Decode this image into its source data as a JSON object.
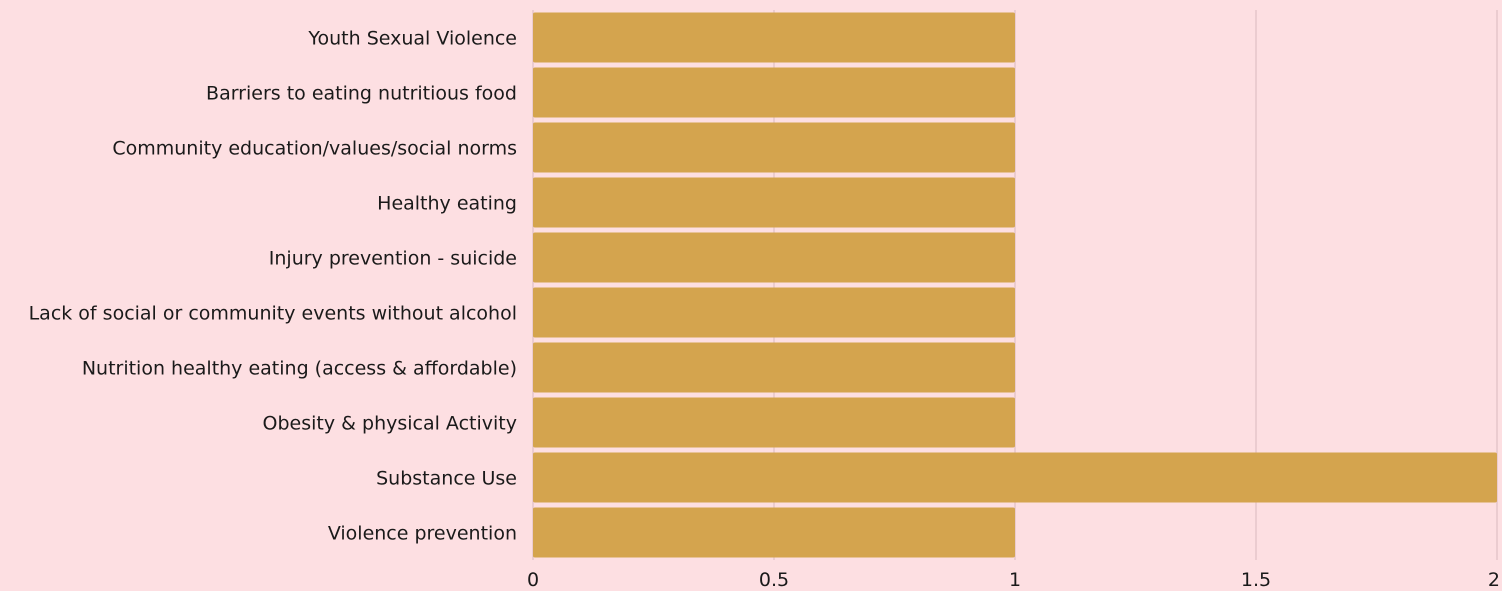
{
  "colors": {
    "background": "#fddfe2",
    "bar": "#d4a44e",
    "grid": "#d9b8be",
    "text": "#1a1a1a"
  },
  "chart_data": {
    "type": "bar",
    "orientation": "horizontal",
    "title": "",
    "xlabel": "",
    "ylabel": "",
    "xlim": [
      0,
      2
    ],
    "grid": true,
    "x_ticks": [
      {
        "value": 0,
        "label": "0"
      },
      {
        "value": 0.5,
        "label": "0.5"
      },
      {
        "value": 1,
        "label": "1"
      },
      {
        "value": 1.5,
        "label": "1.5"
      },
      {
        "value": 2,
        "label": "2"
      }
    ],
    "categories": [
      "Youth Sexual Violence",
      "Barriers to eating nutritious food",
      "Community education/values/social norms",
      "Healthy eating",
      "Injury prevention - suicide",
      "Lack of social or community events without alcohol",
      "Nutrition healthy eating (access & affordable)",
      "Obesity & physical Activity",
      "Substance Use",
      "Violence prevention"
    ],
    "values": [
      1,
      1,
      1,
      1,
      1,
      1,
      1,
      1,
      2,
      1
    ]
  }
}
